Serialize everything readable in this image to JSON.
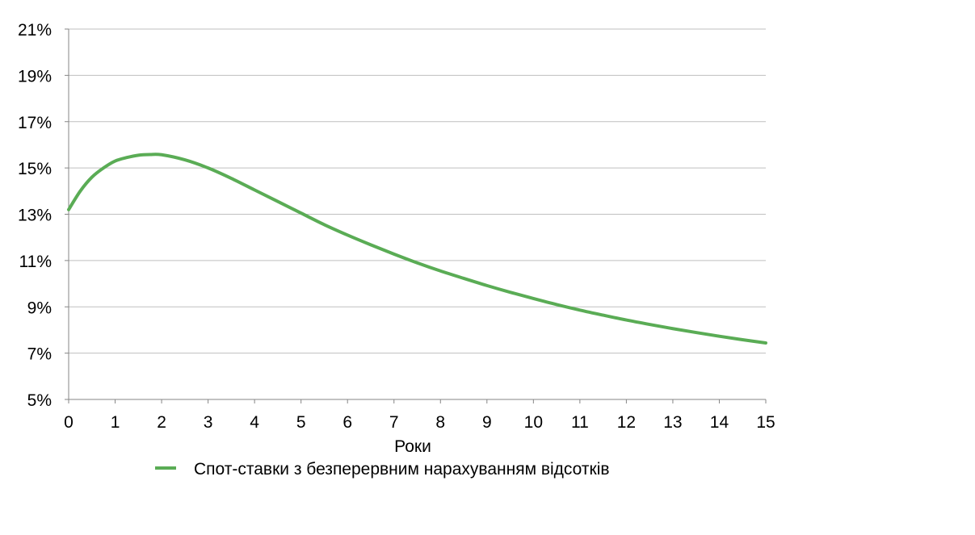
{
  "chart_data": {
    "type": "line",
    "title": "",
    "xlabel": "Роки",
    "ylabel": "",
    "xlim": [
      0,
      15
    ],
    "ylim": [
      5,
      21
    ],
    "x_ticks": [
      0,
      1,
      2,
      3,
      4,
      5,
      6,
      7,
      8,
      9,
      10,
      11,
      12,
      13,
      14,
      15
    ],
    "y_ticks": [
      5,
      7,
      9,
      11,
      13,
      15,
      17,
      19,
      21
    ],
    "y_tick_labels": [
      "5%",
      "7%",
      "9%",
      "11%",
      "13%",
      "15%",
      "17%",
      "19%",
      "21%"
    ],
    "grid": "horizontal",
    "legend_position": "bottom",
    "series": [
      {
        "name": "Спот-ставки з безперервним нарахуванням відсотків",
        "color": "#5aac55",
        "x": [
          0,
          0.25,
          0.5,
          0.75,
          1,
          1.25,
          1.5,
          1.75,
          2,
          2.5,
          3,
          3.5,
          4,
          4.5,
          5,
          5.5,
          6,
          6.5,
          7,
          7.5,
          8,
          8.5,
          9,
          9.5,
          10,
          10.5,
          11,
          11.5,
          12,
          12.5,
          13,
          13.5,
          14,
          14.5,
          15
        ],
        "values": [
          13.2,
          14.0,
          14.6,
          15.0,
          15.3,
          15.45,
          15.55,
          15.58,
          15.57,
          15.35,
          15.0,
          14.55,
          14.05,
          13.55,
          13.05,
          12.55,
          12.1,
          11.68,
          11.28,
          10.9,
          10.55,
          10.23,
          9.92,
          9.63,
          9.36,
          9.1,
          8.86,
          8.64,
          8.43,
          8.24,
          8.06,
          7.89,
          7.73,
          7.58,
          7.44
        ]
      }
    ]
  }
}
